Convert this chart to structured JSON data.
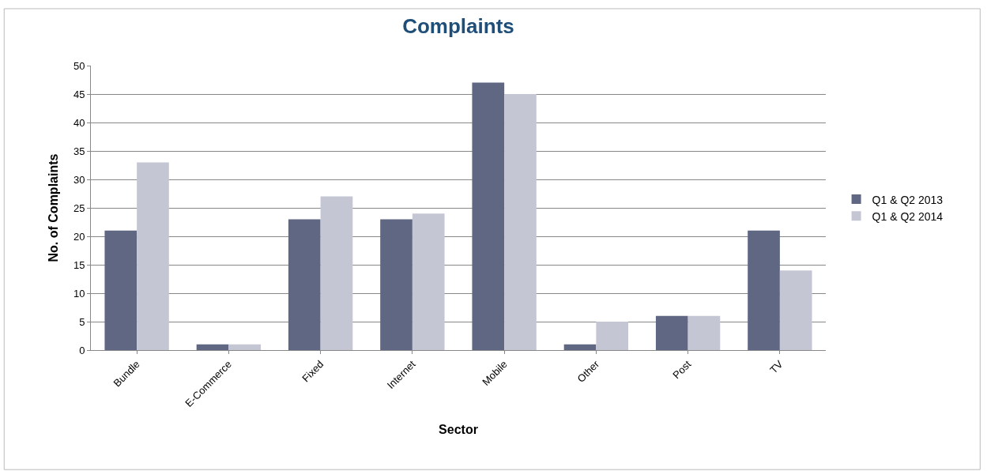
{
  "chart_data": {
    "type": "bar",
    "title": "Complaints",
    "xlabel": "Sector",
    "ylabel": "No. of Complaints",
    "categories": [
      "Bundle",
      "E-Commerce",
      "Fixed",
      "Internet",
      "Mobile",
      "Other",
      "Post",
      "TV"
    ],
    "series": [
      {
        "name": "Q1 & Q2 2013",
        "color": "#5f6783",
        "values": [
          21,
          1,
          23,
          23,
          47,
          1,
          6,
          21
        ]
      },
      {
        "name": "Q1 & Q2 2014",
        "color": "#c5c6d4",
        "values": [
          33,
          1,
          27,
          24,
          45,
          5,
          6,
          14
        ]
      }
    ],
    "ylim": [
      0,
      50
    ],
    "yticks": [
      0,
      5,
      10,
      15,
      20,
      25,
      30,
      35,
      40,
      45,
      50
    ],
    "grid": "y",
    "legend": "right"
  }
}
